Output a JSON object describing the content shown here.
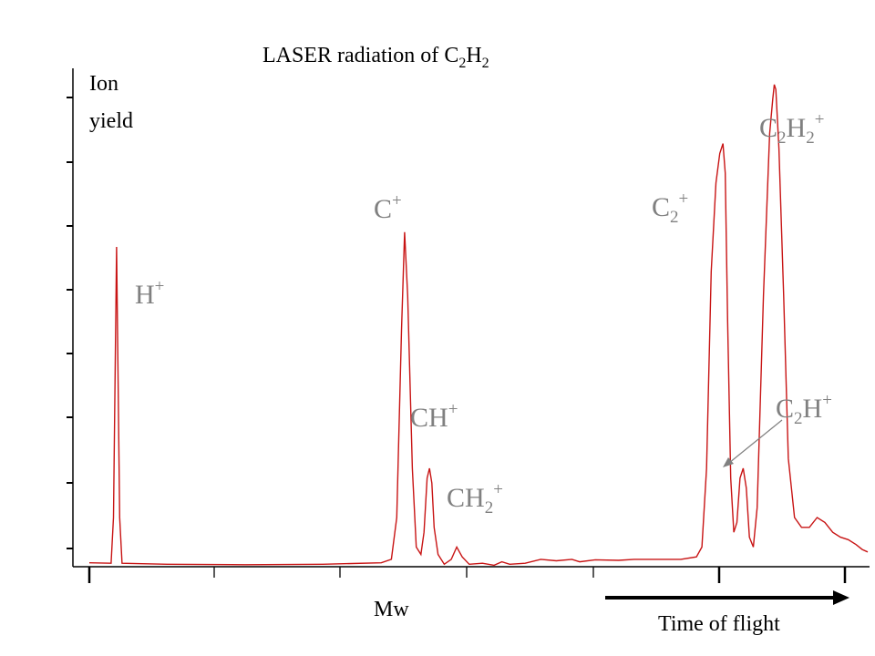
{
  "colors": {
    "trace": "#c81414",
    "peak_label": "#808080",
    "text": "#000000",
    "axis": "#000000"
  },
  "chart_data": {
    "type": "line",
    "title": {
      "prefix": "LASER radiation of ",
      "formula": {
        "a": "C",
        "a_sub": "2",
        "b": "H",
        "b_sub": "2"
      }
    },
    "ylabel": {
      "line1": "Ion",
      "line2": "yield"
    },
    "xlabel": "Mw",
    "arrow_label": "Time of flight",
    "xlim": [
      0,
      100
    ],
    "ylim": [
      0,
      100
    ],
    "grid": false,
    "legend": "none",
    "peaks": [
      {
        "name": "H+",
        "base": "H",
        "sub": "",
        "sup": "+",
        "x": 3.5,
        "y": 65
      },
      {
        "name": "C+",
        "base": "C",
        "sub": "",
        "sup": "+",
        "x": 40.5,
        "y": 68
      },
      {
        "name": "CH+",
        "base": "CH",
        "sub": "",
        "sup": "+",
        "x": 43.7,
        "y": 20
      },
      {
        "name": "CH2+",
        "base": "CH",
        "sub": "2",
        "sup": "+",
        "x": 47.2,
        "y": 4
      },
      {
        "name": "C2+",
        "base": "C",
        "sub": "2",
        "sup": "+",
        "x": 81.7,
        "y": 86
      },
      {
        "name": "C2H+",
        "base": "C",
        "sub": "2",
        "sup": "+",
        "mid": "H",
        "x": 84.0,
        "y": 20
      },
      {
        "name": "C2H2+",
        "base": "C",
        "sub": "2",
        "sup": "+",
        "mid": "H",
        "mid_sub": "2",
        "x": 88.0,
        "y": 98
      }
    ],
    "series": [
      {
        "x": [
          0.0,
          2.8,
          3.1,
          3.5,
          3.9,
          4.2,
          10,
          20,
          30,
          37.5,
          38.8,
          39.5,
          40.1,
          40.5,
          40.9,
          41.5,
          42.0,
          42.6,
          43.0,
          43.4,
          43.7,
          44.0,
          44.3,
          44.8,
          45.6,
          46.5,
          47.2,
          47.9,
          48.8,
          50.5,
          52.0,
          53.0,
          54.0,
          56.0,
          58.0,
          60.0,
          62.0,
          63.0,
          65.0,
          68.0,
          70.0,
          73.0,
          76.0,
          78.0,
          78.7,
          79.3,
          79.9,
          80.5,
          81.0,
          81.4,
          81.7,
          82.0,
          82.4,
          82.8,
          83.2,
          83.6,
          84.0,
          84.4,
          84.8,
          85.3,
          85.8,
          86.6,
          87.4,
          87.8,
          88.0,
          88.2,
          88.6,
          89.2,
          89.8,
          90.6,
          91.5,
          92.5,
          93.5,
          94.5,
          95.5,
          96.5,
          97.5,
          98.5,
          99.3,
          100
        ],
        "y": [
          0.8,
          0.7,
          10,
          65,
          10,
          0.7,
          0.5,
          0.4,
          0.5,
          0.8,
          1.5,
          10,
          48,
          68,
          55,
          20,
          4,
          2.5,
          7,
          18,
          20,
          17,
          8,
          2.5,
          0.5,
          1.5,
          4,
          2,
          0.5,
          0.7,
          0.3,
          1.0,
          0.5,
          0.7,
          1.5,
          1.2,
          1.5,
          1.0,
          1.4,
          1.3,
          1.5,
          1.5,
          1.5,
          2,
          4,
          20,
          60,
          78,
          84,
          86,
          80,
          50,
          18,
          7,
          9,
          18,
          20,
          16,
          6,
          4,
          12,
          55,
          88,
          95,
          98,
          97,
          85,
          55,
          22,
          10,
          8,
          8,
          10,
          9,
          7,
          6,
          5.5,
          4.5,
          3.5,
          3
        ]
      }
    ]
  }
}
